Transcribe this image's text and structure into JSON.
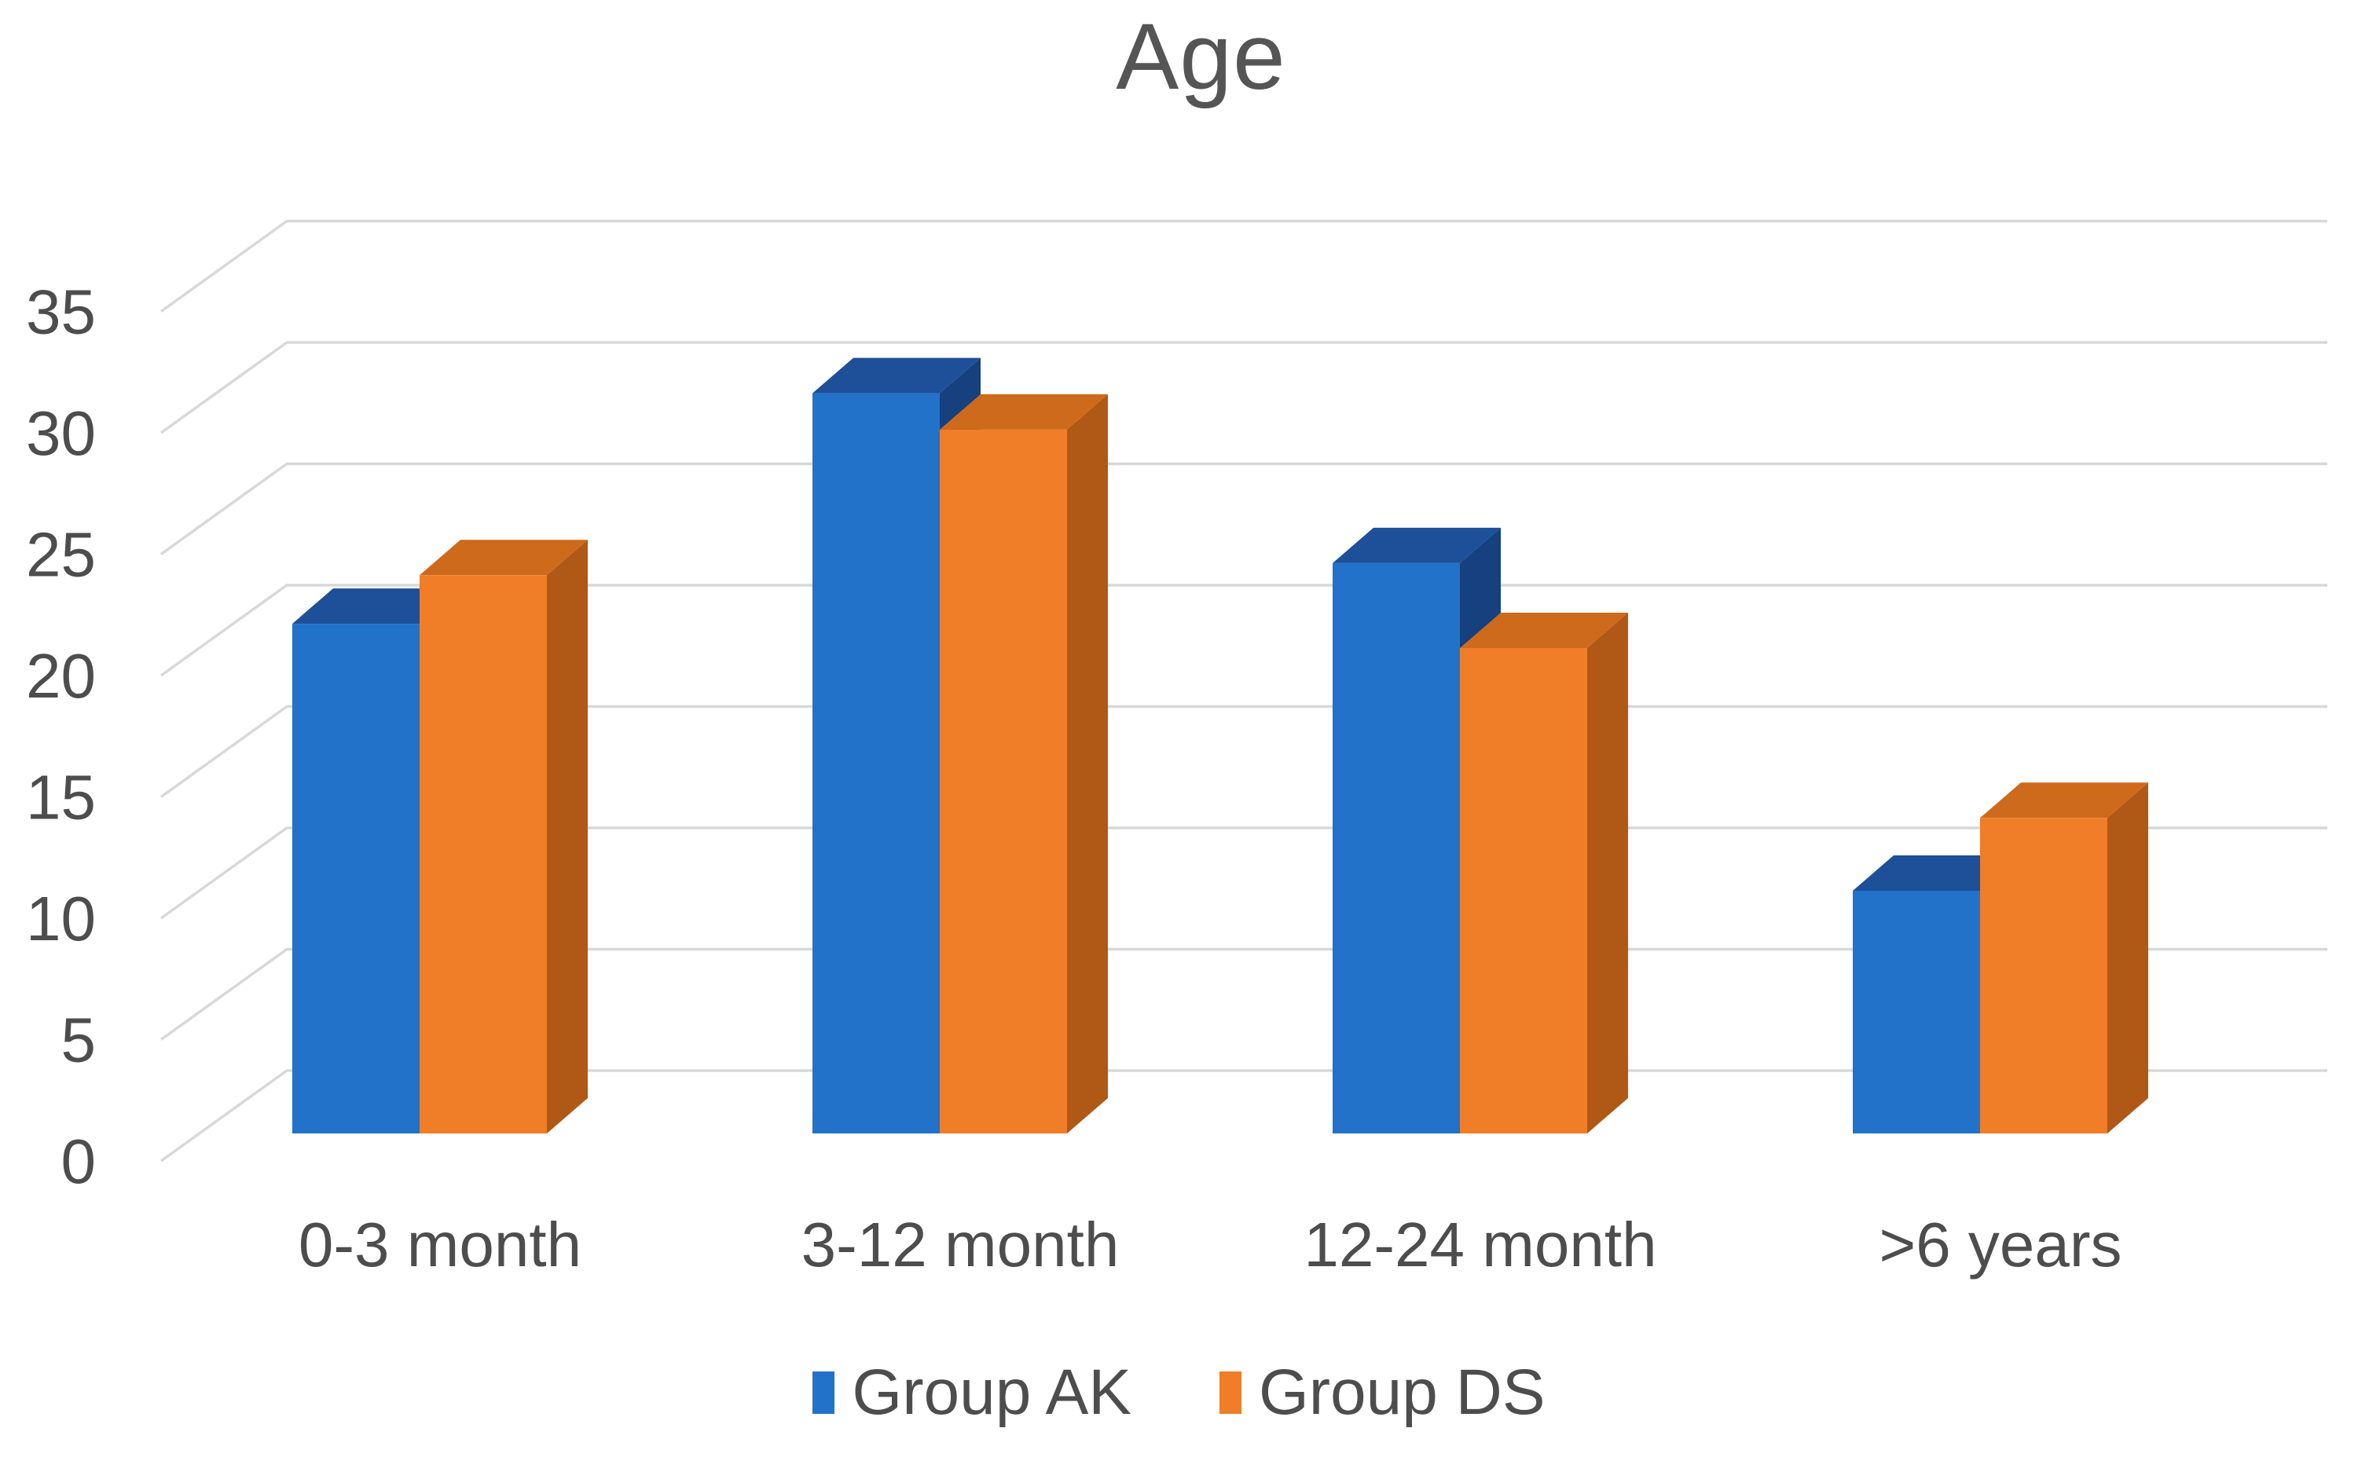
{
  "chart_data": {
    "type": "bar",
    "subtype": "3d-clustered-column",
    "title": "Age",
    "categories": [
      "0-3 month",
      "3-12 month",
      "12-24 month",
      ">6 years"
    ],
    "series": [
      {
        "name": "Group AK",
        "values": [
          21,
          30.5,
          23.5,
          10
        ],
        "color": "#2272C9",
        "color_top": "#1D5098",
        "color_side": "#16407E"
      },
      {
        "name": "Group DS",
        "values": [
          23,
          29,
          20,
          13
        ],
        "color": "#F07D27",
        "color_top": "#CE6A1B",
        "color_side": "#B05816"
      }
    ],
    "xlabel": "",
    "ylabel": "",
    "ylim": [
      0,
      35
    ],
    "ytick_step": 5,
    "yticks": [
      0,
      5,
      10,
      15,
      20,
      25,
      30,
      35
    ],
    "grid": true,
    "gridline_color": "#D8D8D8",
    "text_color": "#4D4D4D",
    "title_color": "#555555",
    "legend_position": "bottom",
    "background": "#FFFFFF"
  }
}
